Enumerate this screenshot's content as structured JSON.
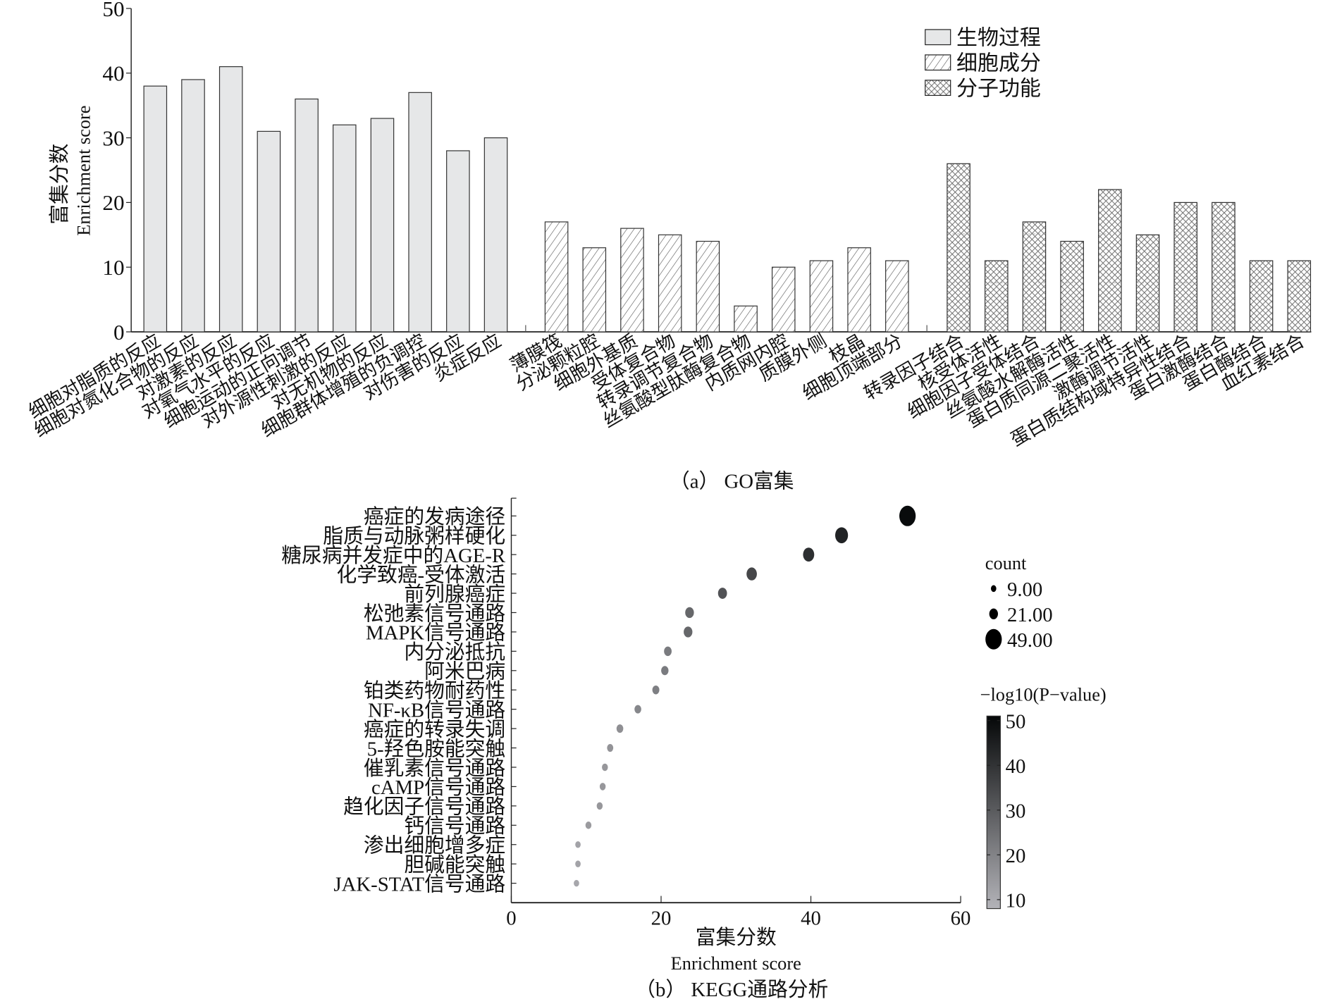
{
  "chart_data": [
    {
      "type": "bar",
      "caption": "（a） GO富集",
      "ylabel": [
        "富集分数",
        "Enrichment score"
      ],
      "ylim": [
        0,
        50
      ],
      "yticks": [
        0,
        10,
        20,
        30,
        40,
        50
      ],
      "legend_position": "top-right",
      "series": [
        {
          "name": "生物过程",
          "fill": "#e6e7e8",
          "pattern": "solid",
          "categories": [
            "细胞对脂质的反应",
            "细胞对氮化合物的反应",
            "对激素的反应",
            "对氧气水平的反应",
            "细胞运动的正向调节",
            "对外源性刺激的反应",
            "对无机物的反应",
            "细胞群体增殖的负调控",
            "对伤害的反应",
            "炎症反应"
          ],
          "values": [
            38,
            39,
            41,
            31,
            36,
            32,
            33,
            37,
            28,
            30
          ]
        },
        {
          "name": "细胞成分",
          "fill": "#ffffff",
          "pattern": "diagonal-hatch",
          "categories": [
            "薄膜筏",
            "分泌颗粒腔",
            "细胞外基质",
            "受体复合物",
            "转录调节复合物",
            "丝氨酸型肽酶复合物",
            "内质网内腔",
            "质膜外侧",
            "枝晶",
            "细胞顶端部分"
          ],
          "values": [
            17,
            13,
            16,
            15,
            14,
            4,
            10,
            11,
            13,
            11
          ]
        },
        {
          "name": "分子功能",
          "fill": "#ffffff",
          "pattern": "cross-hatch",
          "categories": [
            "转录因子结合",
            "核受体活性",
            "细胞因子受体结合",
            "丝氨酸水解酶活性",
            "蛋白质同源二聚活性",
            "激酶调节活性",
            "蛋白质结构域特异性结合",
            "蛋白激酶结合",
            "蛋白酶结合",
            "血红素结合"
          ],
          "values": [
            26,
            11,
            17,
            14,
            22,
            15,
            20,
            20,
            11,
            11
          ]
        }
      ]
    },
    {
      "type": "scatter",
      "caption": "（b） KEGG通路分析",
      "xlabel": [
        "富集分数",
        "Enrichment score"
      ],
      "xlim": [
        0,
        60
      ],
      "xticks": [
        0,
        20,
        40,
        60
      ],
      "categories": [
        "癌症的发病途径",
        "脂质与动脉粥样硬化",
        "糖尿病并发症中的AGE-R",
        "化学致癌-受体激活",
        "前列腺癌症",
        "松弛素信号通路",
        "MAPK信号通路",
        "内分泌抵抗",
        "阿米巴病",
        "铂类药物耐药性",
        "NF-κB信号通路",
        "癌症的转录失调",
        "5-羟色胺能突触",
        "催乳素信号通路",
        "cAMP信号通路",
        "趋化因子信号通路",
        "钙信号通路",
        "渗出细胞增多症",
        "胆碱能突触",
        "JAK-STAT信号通路"
      ],
      "x": [
        52.9,
        44.1,
        39.7,
        32.1,
        28.2,
        23.8,
        23.6,
        20.9,
        20.5,
        19.3,
        16.9,
        14.5,
        13.2,
        12.5,
        12.2,
        11.8,
        10.3,
        8.9,
        8.9,
        8.7
      ],
      "count": [
        49,
        36,
        30,
        27,
        22,
        21,
        21,
        17,
        16,
        15,
        14,
        14,
        12,
        11,
        11,
        11,
        11,
        9,
        9,
        9
      ],
      "neg_log10_p": [
        50,
        44,
        41,
        35,
        32,
        27,
        27,
        22,
        22,
        21,
        19,
        17,
        16,
        15,
        15,
        15,
        14,
        12,
        12,
        11
      ],
      "size_legend": {
        "title": "count",
        "values": [
          "9.00",
          "21.00",
          "49.00"
        ]
      },
      "color_legend": {
        "title": "−log10(P−value)",
        "ticks": [
          10,
          20,
          30,
          40,
          50
        ],
        "range": [
          8,
          51
        ],
        "low_color": "#b3b3b8",
        "high_color": "#050708"
      }
    }
  ]
}
